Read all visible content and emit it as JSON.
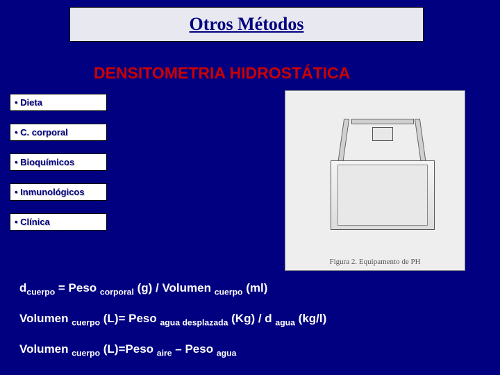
{
  "title": "Otros Métodos",
  "subtitle": "DENSITOMETRIA HIDROSTÁTICA",
  "sidebar": {
    "items": [
      {
        "label": "• Dieta"
      },
      {
        "label": "• C. corporal"
      },
      {
        "label": "• Bioquímicos"
      },
      {
        "label": "• Inmunológicos"
      },
      {
        "label": "• Clínica"
      }
    ]
  },
  "figure": {
    "caption": "Figura 2. Equipamento de PH",
    "background_color": "#eeeeee"
  },
  "formulas": {
    "f1": {
      "t1": "d",
      "s1": "cuerpo",
      "t2": " = Peso ",
      "s2": "corporal",
      "t3": " (g) / Volumen ",
      "s3": "cuerpo",
      "t4": " (ml)"
    },
    "f2": {
      "t1": "Volumen ",
      "s1": "cuerpo",
      "t2": " (L)= Peso ",
      "s2": "agua desplazada",
      "t3": " (Kg) / d ",
      "s3": "agua",
      "t4": " (kg/l)"
    },
    "f3": {
      "t1": "Volumen ",
      "s1": "cuerpo",
      "t2": " (L)=Peso ",
      "s2": "aire",
      "t3": " – Peso ",
      "s3": "agua"
    }
  },
  "colors": {
    "slide_bg": "#000080",
    "title_box_bg": "#e8e8f0",
    "title_text": "#000080",
    "subtitle": "#cc0000",
    "sidebar_item_bg": "#ffffff",
    "sidebar_text": "#000080",
    "formula_text": "#ffffff"
  }
}
